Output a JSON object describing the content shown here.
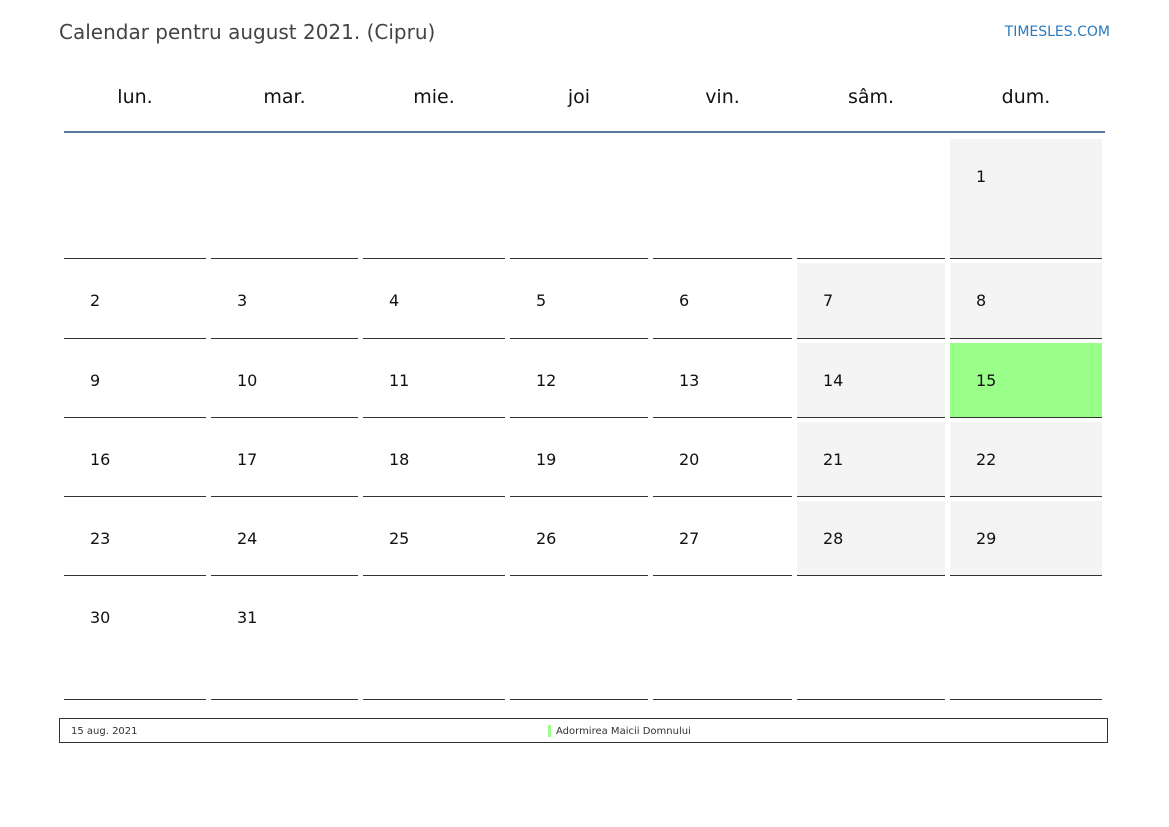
{
  "header": {
    "title": "Calendar pentru august 2021. (Cipru)",
    "brand": "TIMESLES.COM"
  },
  "weekdays": [
    "lun.",
    "mar.",
    "mie.",
    "joi",
    "vin.",
    "sâm.",
    "dum."
  ],
  "weeks": [
    [
      "",
      "",
      "",
      "",
      "",
      "",
      "1"
    ],
    [
      "2",
      "3",
      "4",
      "5",
      "6",
      "7",
      "8"
    ],
    [
      "9",
      "10",
      "11",
      "12",
      "13",
      "14",
      "15"
    ],
    [
      "16",
      "17",
      "18",
      "19",
      "20",
      "21",
      "22"
    ],
    [
      "23",
      "24",
      "25",
      "26",
      "27",
      "28",
      "29"
    ],
    [
      "30",
      "31",
      "",
      "",
      "",
      "",
      ""
    ]
  ],
  "holidays": [
    {
      "day": "15",
      "date": "15 aug. 2021",
      "name": "Adormirea Maicii Domnului",
      "color": "#99ff88"
    }
  ],
  "colors": {
    "weekend": "#f4f4f4",
    "holiday": "#99ff88",
    "header_line": "#5a7aa0",
    "brand": "#2a7ac0"
  }
}
